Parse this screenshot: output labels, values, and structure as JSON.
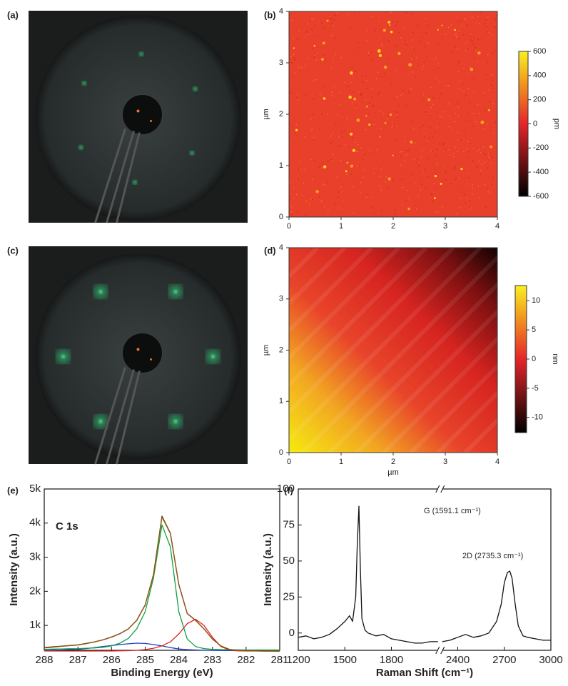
{
  "chart_data": [
    {
      "type": "image",
      "panel": "(a)"
    },
    {
      "type": "heatmap",
      "panel": "(b)",
      "ylabel": "µm",
      "xlim": [
        0,
        4
      ],
      "xticks": [
        0,
        1,
        2,
        3,
        4
      ],
      "ylim": [
        0,
        4
      ],
      "yticks": [
        0,
        1,
        2,
        3,
        4
      ],
      "colorbar": {
        "label": "pm",
        "lim": [
          -600,
          600
        ],
        "ticks": [
          -600,
          -400,
          -200,
          0,
          200,
          400,
          600
        ]
      }
    },
    {
      "type": "image",
      "panel": "(c)"
    },
    {
      "type": "heatmap",
      "panel": "(d)",
      "xlabel": "µm",
      "ylabel": "µm",
      "xlim": [
        0,
        4
      ],
      "xticks": [
        0,
        1,
        2,
        3,
        4
      ],
      "ylim": [
        0,
        4
      ],
      "yticks": [
        0,
        1,
        2,
        3,
        4
      ],
      "colorbar": {
        "label": "nm",
        "lim": [
          -12.6,
          12.6
        ],
        "ticks": [
          -10,
          -5,
          0,
          5,
          10
        ]
      }
    },
    {
      "type": "line",
      "panel": "(e)",
      "annotations": [
        "C 1s"
      ],
      "xlabel": "Binding Energy (eV)",
      "ylabel": "Intensity (a.u.)",
      "xlim": [
        288,
        281
      ],
      "xticks": [
        288,
        287,
        286,
        285,
        284,
        283,
        282,
        281
      ],
      "ylim": [
        270,
        5000
      ],
      "yticks": [
        {
          "value": 1000,
          "label": "1k"
        },
        {
          "value": 2000,
          "label": "2k"
        },
        {
          "value": 3000,
          "label": "3k"
        },
        {
          "value": 4000,
          "label": "4k"
        },
        {
          "value": 5000,
          "label": "5k"
        }
      ],
      "x": [
        288,
        287.75,
        287.5,
        287.25,
        287,
        286.75,
        286.5,
        286.25,
        286,
        285.75,
        285.5,
        285.25,
        285,
        284.75,
        284.5,
        284.25,
        284,
        283.75,
        283.5,
        283.25,
        283,
        282.75,
        282.5,
        282.25,
        282,
        281.75,
        281.5,
        281.25,
        281
      ],
      "series": [
        {
          "color": "#1f3fbf",
          "values": [
            270,
            275,
            280,
            290,
            300,
            320,
            350,
            380,
            410,
            440,
            460,
            480,
            470,
            440,
            400,
            350,
            310,
            290,
            280,
            272,
            268,
            265,
            262,
            260,
            258,
            257,
            256,
            255,
            255
          ]
        },
        {
          "color": "#e02020",
          "values": [
            250,
            250,
            250,
            250,
            250,
            250,
            250,
            250,
            250,
            255,
            260,
            270,
            290,
            330,
            400,
            520,
            750,
            1050,
            1180,
            1000,
            650,
            380,
            280,
            255,
            250,
            250,
            250,
            250,
            250
          ]
        },
        {
          "color": "#10a040",
          "values": [
            300,
            305,
            310,
            315,
            320,
            330,
            340,
            360,
            400,
            480,
            620,
            900,
            1400,
            2400,
            3950,
            3300,
            1400,
            600,
            380,
            320,
            300,
            290,
            285,
            282,
            280,
            280,
            280,
            280,
            280
          ]
        },
        {
          "color": "#111111",
          "values": [
            350,
            370,
            390,
            410,
            430,
            470,
            520,
            580,
            660,
            760,
            900,
            1150,
            1600,
            2500,
            4200,
            3700,
            2200,
            1350,
            1150,
            900,
            600,
            400,
            300,
            270,
            260,
            255,
            250,
            248,
            245
          ]
        },
        {
          "color": "#9a5a10",
          "values": [
            340,
            360,
            385,
            405,
            425,
            465,
            515,
            575,
            655,
            755,
            895,
            1145,
            1595,
            2495,
            4180,
            3690,
            2190,
            1345,
            1145,
            895,
            598,
            398,
            298,
            268,
            258,
            253,
            248,
            246,
            243
          ]
        }
      ]
    },
    {
      "type": "line",
      "panel": "(f)",
      "annotations": [
        "G (1591.1 cm⁻¹)",
        "2D (2735.3 cm⁻¹)"
      ],
      "xlabel": "Raman Shift (cm⁻¹)",
      "ylabel": "Intensity (a.u.)",
      "xlim": [
        1200,
        3000
      ],
      "xbreak": [
        2100,
        2300
      ],
      "xticks": [
        1200,
        1500,
        1800,
        2400,
        2700,
        3000
      ],
      "ylim": [
        -12,
        100
      ],
      "yticks": [
        0,
        25,
        50,
        75,
        100
      ],
      "x": [
        1200,
        1250,
        1300,
        1350,
        1400,
        1450,
        1500,
        1530,
        1550,
        1570,
        1580,
        1591,
        1600,
        1610,
        1630,
        1650,
        1700,
        1750,
        1800,
        1850,
        1900,
        1950,
        2000,
        2050,
        2100,
        2200,
        2300,
        2350,
        2400,
        2450,
        2500,
        2550,
        2600,
        2650,
        2680,
        2700,
        2720,
        2735,
        2750,
        2770,
        2790,
        2820,
        2850,
        2900,
        2950,
        3000
      ],
      "series": [
        {
          "color": "#111111",
          "values": [
            -3,
            -2,
            -4,
            -3,
            -1,
            3,
            8,
            12,
            8,
            25,
            60,
            88,
            45,
            10,
            2,
            0,
            -2,
            -1,
            -4,
            -5,
            -6,
            -7,
            -7,
            -6,
            -6,
            null,
            -6,
            -5,
            -3,
            -1,
            -3,
            -2,
            0,
            8,
            20,
            35,
            42,
            43,
            38,
            20,
            5,
            -2,
            -3,
            -4,
            -5,
            -5
          ]
        }
      ]
    }
  ]
}
